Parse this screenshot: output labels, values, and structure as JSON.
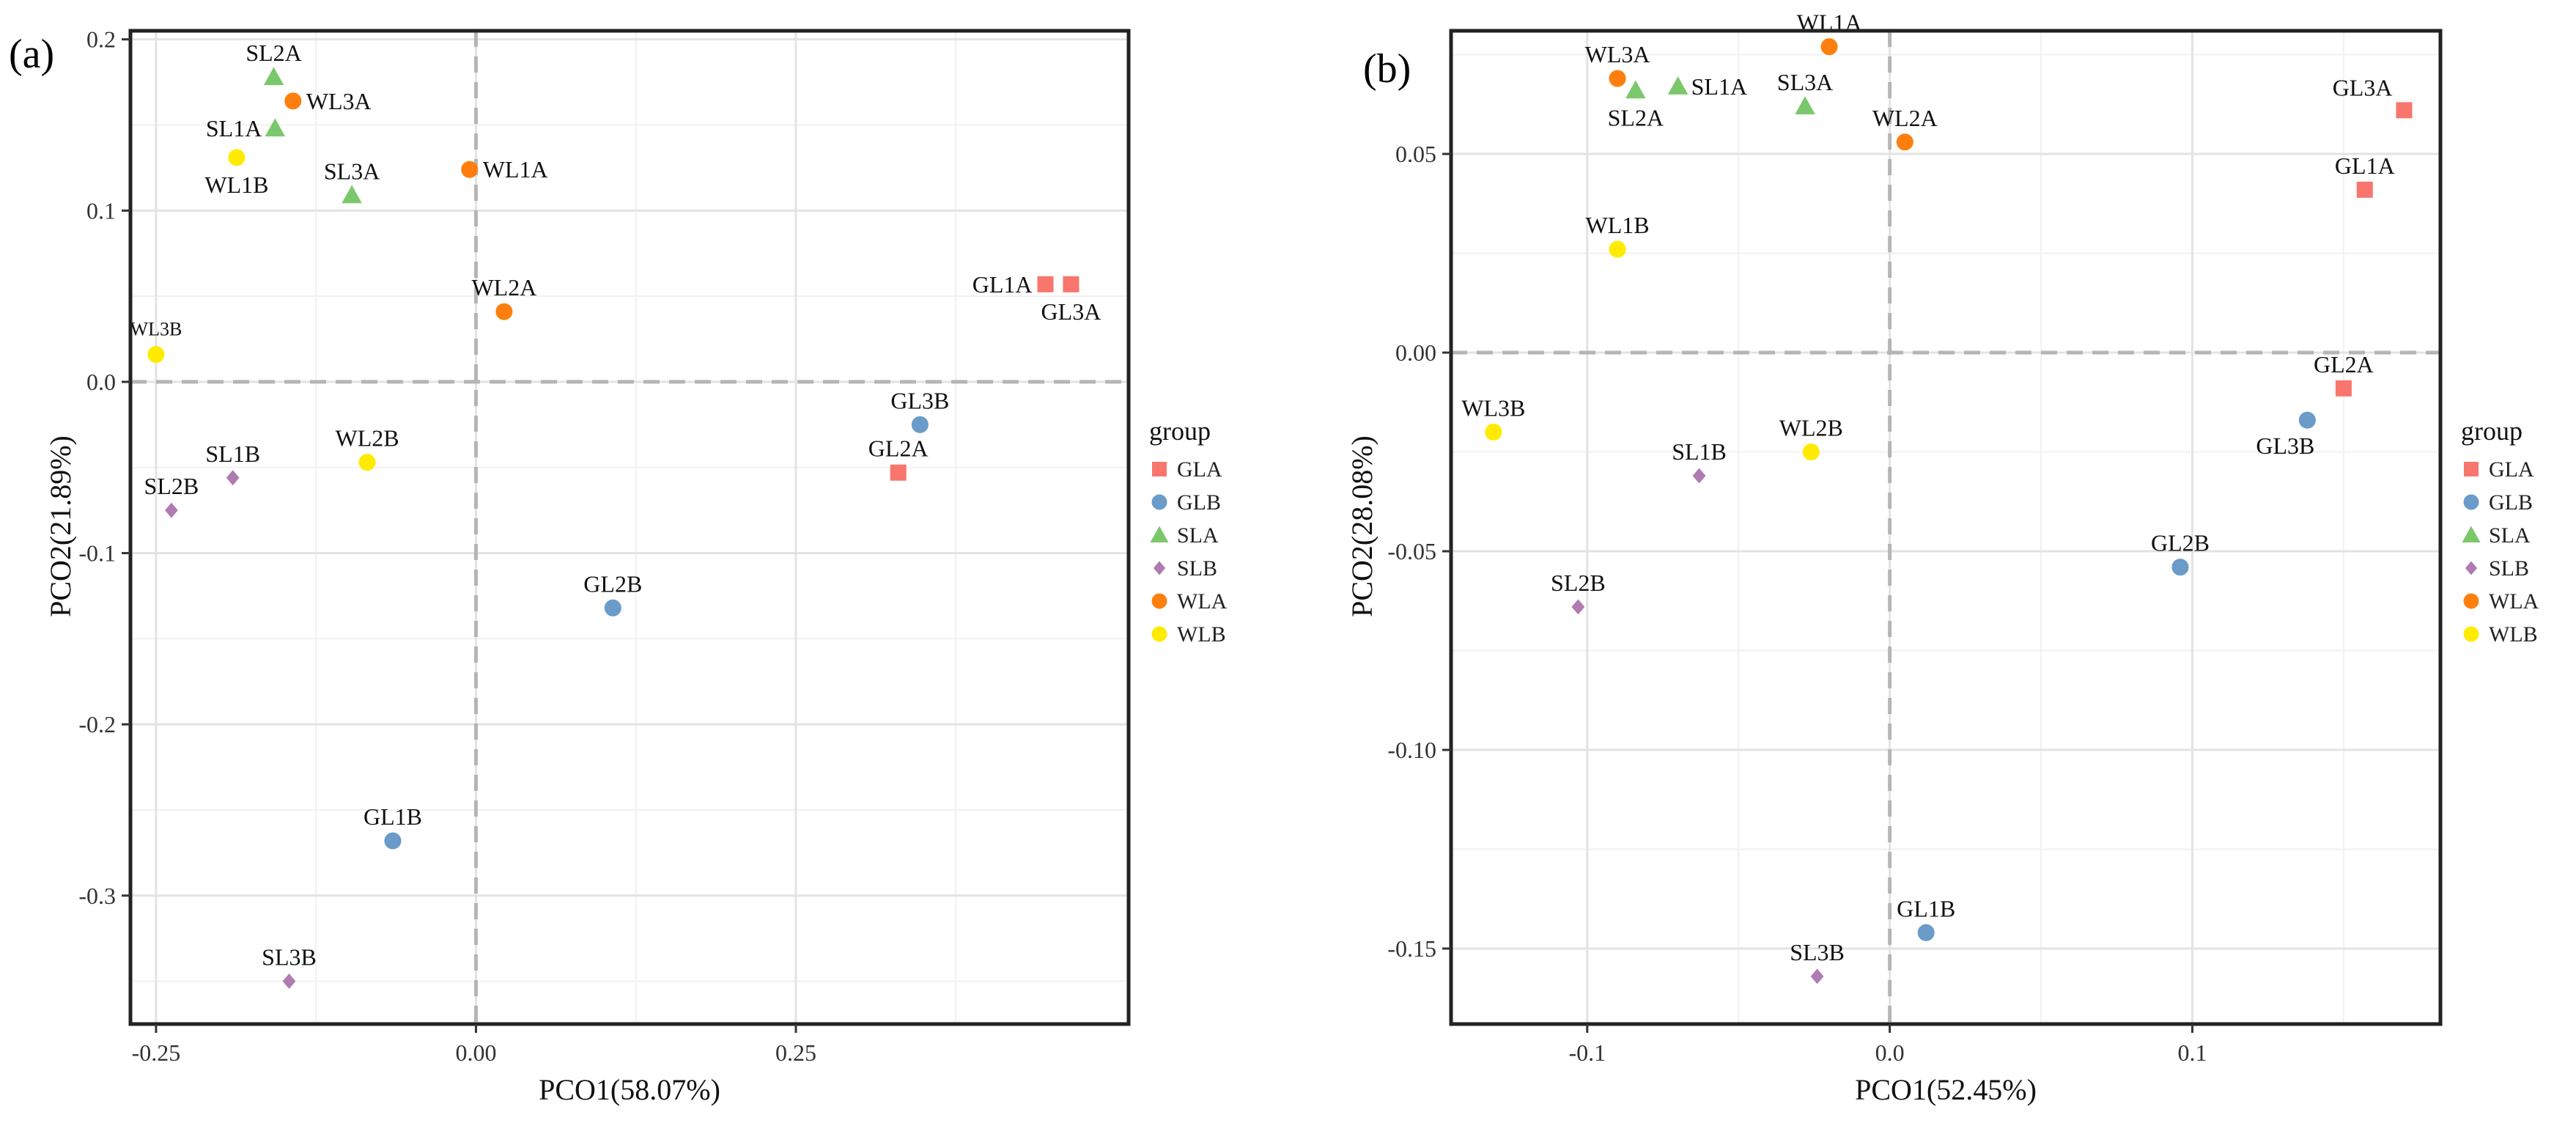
{
  "groups": [
    {
      "name": "GLA",
      "color": "#F8766D",
      "shape": "square"
    },
    {
      "name": "GLB",
      "color": "#6A9BC9",
      "shape": "circle"
    },
    {
      "name": "SLA",
      "color": "#7BC86C",
      "shape": "triangle"
    },
    {
      "name": "SLB",
      "color": "#B07AB2",
      "shape": "diamond"
    },
    {
      "name": "WLA",
      "color": "#FF7F0E",
      "shape": "circle"
    },
    {
      "name": "WLB",
      "color": "#FFEB00",
      "shape": "circle"
    }
  ],
  "chart_data": [
    {
      "panel": "(a)",
      "type": "scatter",
      "xlabel": "PCO1(58.07%)",
      "ylabel": "PCO2(21.89%)",
      "xlim": [
        -0.27,
        0.51
      ],
      "ylim": [
        -0.375,
        0.205
      ],
      "xticks": [
        -0.25,
        0.0,
        0.25
      ],
      "xtick_labels": [
        "-0.25",
        "0.00",
        "0.25"
      ],
      "yticks": [
        -0.3,
        -0.2,
        -0.1,
        0.0,
        0.1,
        0.2
      ],
      "ytick_labels": [
        "-0.3",
        "-0.2",
        "-0.1",
        "0.0",
        "0.1",
        "0.2"
      ],
      "legend_title": "group",
      "legend_position": "right",
      "points": [
        {
          "label": "GL1A",
          "group": "GLA",
          "x": 0.445,
          "y": 0.057,
          "pos": "left"
        },
        {
          "label": "GL3A",
          "group": "GLA",
          "x": 0.465,
          "y": 0.057,
          "pos": "below"
        },
        {
          "label": "GL2A",
          "group": "GLA",
          "x": 0.33,
          "y": -0.053,
          "pos": "above"
        },
        {
          "label": "GL3B",
          "group": "GLB",
          "x": 0.347,
          "y": -0.025,
          "pos": "above"
        },
        {
          "label": "GL2B",
          "group": "GLB",
          "x": 0.107,
          "y": -0.132,
          "pos": "above"
        },
        {
          "label": "GL1B",
          "group": "GLB",
          "x": -0.065,
          "y": -0.268,
          "pos": "above"
        },
        {
          "label": "SL2A",
          "group": "SLA",
          "x": -0.158,
          "y": 0.178,
          "pos": "above"
        },
        {
          "label": "SL1A",
          "group": "SLA",
          "x": -0.157,
          "y": 0.148,
          "pos": "left"
        },
        {
          "label": "SL3A",
          "group": "SLA",
          "x": -0.097,
          "y": 0.109,
          "pos": "above"
        },
        {
          "label": "SL1B",
          "group": "SLB",
          "x": -0.19,
          "y": -0.056,
          "pos": "above"
        },
        {
          "label": "SL2B",
          "group": "SLB",
          "x": -0.238,
          "y": -0.075,
          "pos": "above"
        },
        {
          "label": "SL3B",
          "group": "SLB",
          "x": -0.146,
          "y": -0.35,
          "pos": "above"
        },
        {
          "label": "WL3A",
          "group": "WLA",
          "x": -0.143,
          "y": 0.164,
          "pos": "right"
        },
        {
          "label": "WL1A",
          "group": "WLA",
          "x": -0.005,
          "y": 0.124,
          "pos": "right"
        },
        {
          "label": "WL2A",
          "group": "WLA",
          "x": 0.022,
          "y": 0.041,
          "pos": "above"
        },
        {
          "label": "WL1B",
          "group": "WLB",
          "x": -0.187,
          "y": 0.131,
          "pos": "below"
        },
        {
          "label": "WL3B",
          "group": "WLB",
          "x": -0.25,
          "y": 0.016,
          "pos": "above-small"
        },
        {
          "label": "WL2B",
          "group": "WLB",
          "x": -0.085,
          "y": -0.047,
          "pos": "above"
        }
      ]
    },
    {
      "panel": "(b)",
      "type": "scatter",
      "xlabel": "PCO1(52.45%)",
      "ylabel": "PCO2(28.08%)",
      "xlim": [
        -0.145,
        0.182
      ],
      "ylim": [
        -0.169,
        0.081
      ],
      "xticks": [
        -0.1,
        0.0,
        0.1
      ],
      "xtick_labels": [
        "-0.1",
        "0.0",
        "0.1"
      ],
      "yticks": [
        -0.15,
        -0.1,
        -0.05,
        0.0,
        0.05
      ],
      "ytick_labels": [
        "-0.15",
        "-0.10",
        "-0.05",
        "0.00",
        "0.05"
      ],
      "legend_title": "group",
      "legend_position": "right",
      "points": [
        {
          "label": "GL3A",
          "group": "GLA",
          "x": 0.17,
          "y": 0.061,
          "pos": "above-left"
        },
        {
          "label": "GL1A",
          "group": "GLA",
          "x": 0.157,
          "y": 0.041,
          "pos": "above"
        },
        {
          "label": "GL2A",
          "group": "GLA",
          "x": 0.15,
          "y": -0.009,
          "pos": "above"
        },
        {
          "label": "GL3B",
          "group": "GLB",
          "x": 0.138,
          "y": -0.017,
          "pos": "below-left"
        },
        {
          "label": "GL2B",
          "group": "GLB",
          "x": 0.096,
          "y": -0.054,
          "pos": "above"
        },
        {
          "label": "GL1B",
          "group": "GLB",
          "x": 0.012,
          "y": -0.146,
          "pos": "above"
        },
        {
          "label": "SL2A",
          "group": "SLA",
          "x": -0.084,
          "y": 0.066,
          "pos": "below"
        },
        {
          "label": "SL1A",
          "group": "SLA",
          "x": -0.07,
          "y": 0.067,
          "pos": "right"
        },
        {
          "label": "SL3A",
          "group": "SLA",
          "x": -0.028,
          "y": 0.062,
          "pos": "above"
        },
        {
          "label": "SL1B",
          "group": "SLB",
          "x": -0.063,
          "y": -0.031,
          "pos": "above"
        },
        {
          "label": "SL2B",
          "group": "SLB",
          "x": -0.103,
          "y": -0.064,
          "pos": "above"
        },
        {
          "label": "SL3B",
          "group": "SLB",
          "x": -0.024,
          "y": -0.157,
          "pos": "above"
        },
        {
          "label": "WL3A",
          "group": "WLA",
          "x": -0.09,
          "y": 0.069,
          "pos": "above"
        },
        {
          "label": "WL1A",
          "group": "WLA",
          "x": -0.02,
          "y": 0.077,
          "pos": "above"
        },
        {
          "label": "WL2A",
          "group": "WLA",
          "x": 0.005,
          "y": 0.053,
          "pos": "above"
        },
        {
          "label": "WL1B",
          "group": "WLB",
          "x": -0.09,
          "y": 0.026,
          "pos": "above"
        },
        {
          "label": "WL3B",
          "group": "WLB",
          "x": -0.131,
          "y": -0.02,
          "pos": "above"
        },
        {
          "label": "WL2B",
          "group": "WLB",
          "x": -0.026,
          "y": -0.025,
          "pos": "above"
        }
      ]
    }
  ]
}
